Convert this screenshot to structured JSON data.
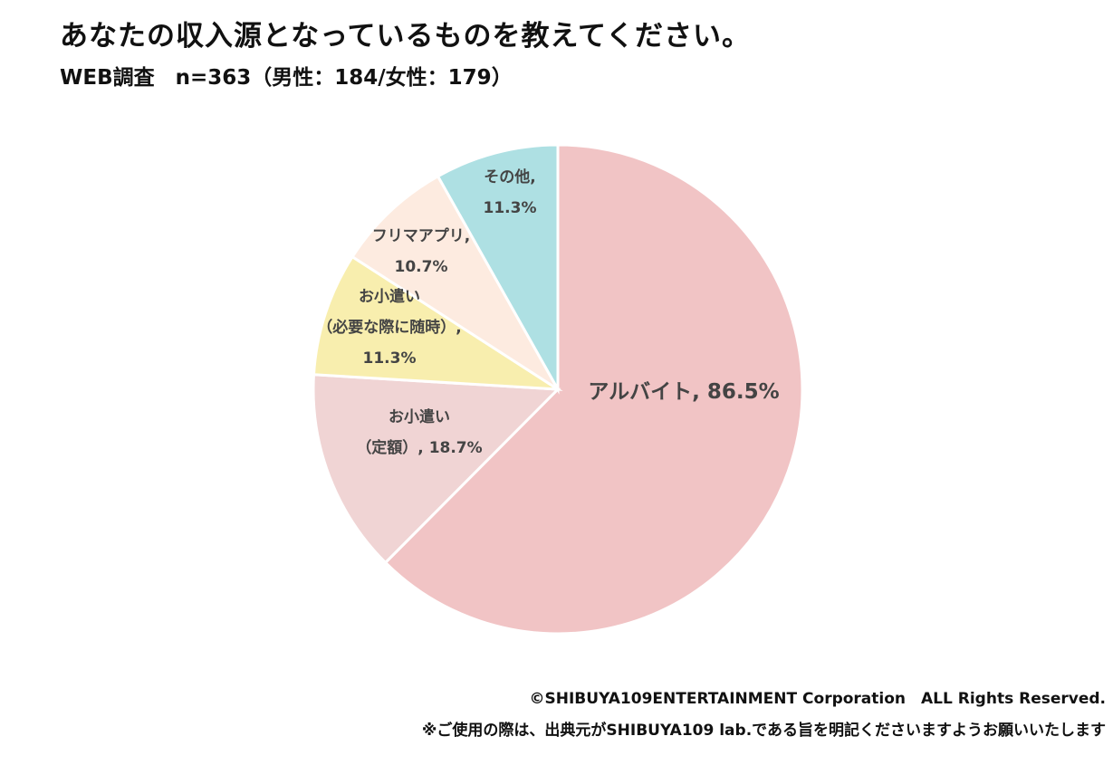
{
  "header": {
    "title": "あなたの収入源となっているものを教えてください。",
    "subtitle": "WEB調査　n=363（男性：184/女性：179）"
  },
  "chart_data": {
    "type": "pie",
    "title": "あなたの収入源となっているものを教えてください。",
    "start": "top",
    "direction": "clockwise",
    "slices": [
      {
        "label": "アルバイト",
        "value": 86.5,
        "display": [
          "アルバイト, 86.5%"
        ],
        "color": "#f1c4c5"
      },
      {
        "label": "お小遣い（定額）",
        "value": 18.7,
        "display": [
          "お小遣い",
          "（定額）, 18.7%"
        ],
        "color": "#f0d4d4"
      },
      {
        "label": "お小遣い（必要な際に随時）",
        "value": 11.3,
        "display": [
          "お小遣い",
          "（必要な際に随時）,",
          "11.3%"
        ],
        "color": "#f8eeae"
      },
      {
        "label": "フリマアプリ",
        "value": 10.7,
        "display": [
          "フリマアプリ,",
          "10.7%"
        ],
        "color": "#fdebe0"
      },
      {
        "label": "その他",
        "value": 11.3,
        "display": [
          "その他,",
          "11.3%"
        ],
        "color": "#aee0e3"
      }
    ]
  },
  "footer": {
    "copyright": "©SHIBUYA109ENTERTAINMENT Corporation　ALL Rights Reserved.",
    "note": "※ご使用の際は、出典元がSHIBUYA109 lab.である旨を明記くださいますようお願いいたします"
  }
}
